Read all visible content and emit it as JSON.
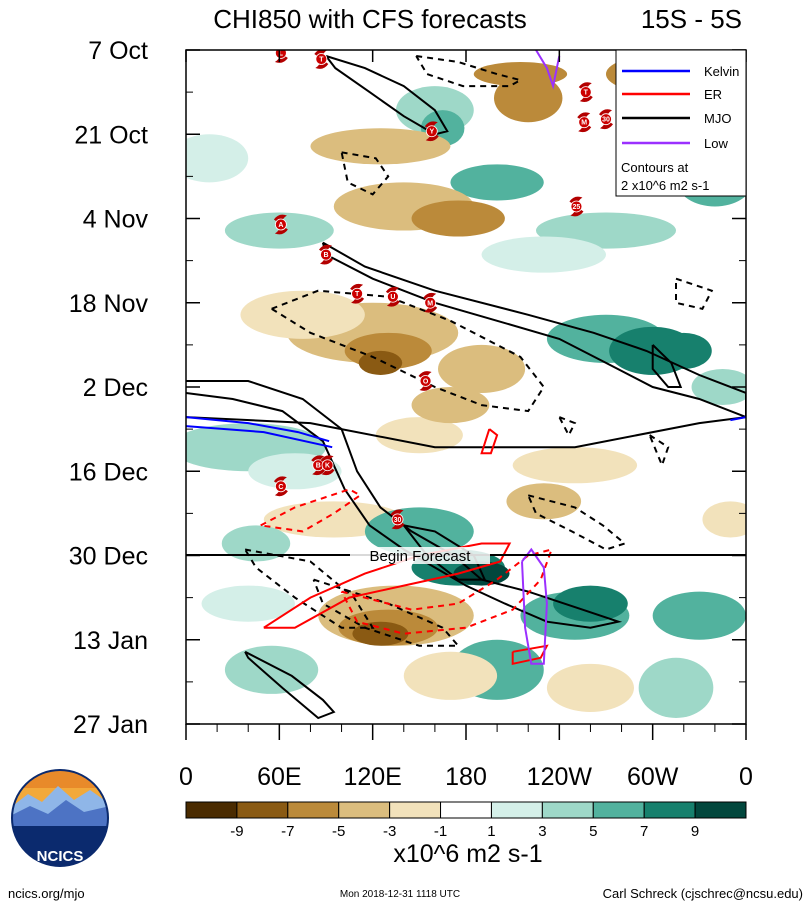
{
  "chart_data": {
    "type": "heatmap",
    "title": "CHI850 with CFS forecasts",
    "subtitle": "15S - 5S",
    "y_tick_labels": [
      "7 Oct",
      "21 Oct",
      "4 Nov",
      "18 Nov",
      "2 Dec",
      "16 Dec",
      "30 Dec",
      "13 Jan",
      "27 Jan"
    ],
    "x_tick_labels": [
      "0",
      "60E",
      "120E",
      "180",
      "120W",
      "60W",
      "0"
    ],
    "x_range_deg_east": [
      0,
      360
    ],
    "y_range_days": [
      0,
      112
    ],
    "begin_forecast_label": "Begin Forecast",
    "begin_forecast_day": 84,
    "legend": {
      "entries": [
        {
          "label": "Kelvin",
          "color": "#0000ff"
        },
        {
          "label": "ER",
          "color": "#ff0000"
        },
        {
          "label": "MJO",
          "color": "#000000"
        },
        {
          "label": "Low",
          "color": "#9b30ff"
        }
      ],
      "note_line1": "Contours at",
      "note_line2": "2 x10^6 m2 s-1",
      "placement": "top-right"
    },
    "colorbar": {
      "levels": [
        "-9",
        "-7",
        "-5",
        "-3",
        "-1",
        "1",
        "3",
        "5",
        "7",
        "9"
      ],
      "colors": [
        "#4a2b00",
        "#8a5a13",
        "#bb8a3a",
        "#dbbd7e",
        "#f2e2bb",
        "#ffffff",
        "#d4efe8",
        "#9ed8c8",
        "#52b29e",
        "#17806d",
        "#02473d"
      ],
      "units": "x10^6 m2 s-1"
    },
    "storms": [
      {
        "label": "L",
        "lon": 61,
        "day": 0.5
      },
      {
        "label": "T",
        "lon": 87,
        "day": 1.5
      },
      {
        "label": "Y",
        "lon": 158,
        "day": 13.5
      },
      {
        "label": "T",
        "lon": 257,
        "day": 7
      },
      {
        "label": "M",
        "lon": 256,
        "day": 12
      },
      {
        "label": "30",
        "lon": 270,
        "day": 11.5
      },
      {
        "label": "25",
        "lon": 251,
        "day": 26
      },
      {
        "label": "A",
        "lon": 61,
        "day": 29
      },
      {
        "label": "B",
        "lon": 90,
        "day": 34
      },
      {
        "label": "T",
        "lon": 110,
        "day": 40.5
      },
      {
        "label": "U",
        "lon": 133,
        "day": 41
      },
      {
        "label": "M",
        "lon": 157,
        "day": 42
      },
      {
        "label": "O",
        "lon": 154,
        "day": 55
      },
      {
        "label": "B",
        "lon": 85,
        "day": 69
      },
      {
        "label": "K",
        "lon": 91,
        "day": 69
      },
      {
        "label": "C",
        "lon": 61,
        "day": 72.5
      },
      {
        "label": "30",
        "lon": 136,
        "day": 78
      }
    ],
    "mjo_contours_solid": [
      [
        [
          90,
          1
        ],
        [
          115,
          3
        ],
        [
          140,
          6
        ],
        [
          160,
          10
        ],
        [
          168,
          13.5
        ],
        [
          160,
          14
        ],
        [
          140,
          11
        ],
        [
          118,
          7
        ],
        [
          96,
          3
        ],
        [
          90,
          1
        ]
      ],
      [
        [
          88,
          32
        ],
        [
          115,
          36
        ],
        [
          160,
          40
        ],
        [
          220,
          44
        ],
        [
          262,
          47
        ],
        [
          296,
          50
        ],
        [
          330,
          54
        ],
        [
          360,
          57
        ],
        [
          360,
          61
        ],
        [
          330,
          58
        ],
        [
          300,
          56
        ],
        [
          270,
          52
        ],
        [
          240,
          48
        ],
        [
          200,
          45
        ],
        [
          160,
          42
        ],
        [
          120,
          38
        ],
        [
          90,
          34
        ],
        [
          88,
          32
        ]
      ],
      [
        [
          0,
          55
        ],
        [
          40,
          55
        ],
        [
          75,
          58
        ],
        [
          100,
          63
        ],
        [
          110,
          70
        ],
        [
          125,
          76
        ],
        [
          145,
          80
        ],
        [
          172,
          84
        ],
        [
          190,
          88
        ],
        [
          220,
          90
        ],
        [
          255,
          93
        ],
        [
          278,
          95
        ],
        [
          260,
          96
        ],
        [
          232,
          95
        ],
        [
          205,
          92
        ],
        [
          180,
          89
        ],
        [
          160,
          86
        ],
        [
          140,
          83
        ],
        [
          118,
          79
        ],
        [
          102,
          73
        ],
        [
          88,
          65
        ],
        [
          62,
          60
        ],
        [
          30,
          58
        ],
        [
          0,
          57
        ]
      ],
      [
        [
          300,
          49
        ],
        [
          312,
          52
        ],
        [
          318,
          56
        ],
        [
          310,
          56
        ],
        [
          300,
          53
        ],
        [
          300,
          49
        ]
      ],
      [
        [
          38,
          100
        ],
        [
          68,
          104
        ],
        [
          88,
          108
        ],
        [
          95,
          110
        ],
        [
          85,
          111
        ],
        [
          62,
          106
        ],
        [
          40,
          101
        ],
        [
          38,
          100
        ]
      ],
      [
        [
          140,
          79
        ],
        [
          160,
          80
        ],
        [
          185,
          84
        ],
        [
          192,
          88
        ],
        [
          175,
          88
        ],
        [
          155,
          84
        ],
        [
          140,
          79
        ]
      ],
      [
        [
          0,
          61
        ],
        [
          80,
          62
        ],
        [
          160,
          66
        ],
        [
          250,
          66
        ],
        [
          330,
          62
        ],
        [
          360,
          61
        ]
      ]
    ],
    "mjo_contours_dashed": [
      [
        [
          148,
          1
        ],
        [
          175,
          2
        ],
        [
          200,
          4
        ],
        [
          215,
          5
        ],
        [
          208,
          6
        ],
        [
          178,
          6
        ],
        [
          155,
          4
        ],
        [
          148,
          1
        ]
      ],
      [
        [
          100,
          17
        ],
        [
          122,
          18
        ],
        [
          130,
          21
        ],
        [
          120,
          24
        ],
        [
          104,
          22
        ],
        [
          100,
          17
        ]
      ],
      [
        [
          55,
          43
        ],
        [
          85,
          40
        ],
        [
          130,
          41
        ],
        [
          170,
          45
        ],
        [
          215,
          51
        ],
        [
          230,
          56
        ],
        [
          220,
          60
        ],
        [
          190,
          59
        ],
        [
          160,
          56
        ],
        [
          120,
          51
        ],
        [
          80,
          47
        ],
        [
          55,
          43
        ]
      ],
      [
        [
          315,
          38
        ],
        [
          338,
          40
        ],
        [
          332,
          43
        ],
        [
          315,
          42
        ],
        [
          315,
          38
        ]
      ],
      [
        [
          240,
          61
        ],
        [
          250,
          62
        ],
        [
          246,
          64
        ],
        [
          240,
          61
        ]
      ],
      [
        [
          298,
          64
        ],
        [
          310,
          66
        ],
        [
          306,
          69
        ],
        [
          298,
          64
        ]
      ],
      [
        [
          220,
          74
        ],
        [
          250,
          76
        ],
        [
          268,
          79
        ],
        [
          282,
          82
        ],
        [
          270,
          83
        ],
        [
          248,
          80
        ],
        [
          225,
          77
        ],
        [
          220,
          74
        ]
      ],
      [
        [
          38,
          83
        ],
        [
          80,
          85
        ],
        [
          108,
          91
        ],
        [
          120,
          96
        ],
        [
          100,
          96
        ],
        [
          70,
          91
        ],
        [
          45,
          86
        ],
        [
          38,
          83
        ]
      ],
      [
        [
          82,
          88
        ],
        [
          130,
          92
        ],
        [
          165,
          96
        ],
        [
          175,
          99
        ],
        [
          150,
          99
        ],
        [
          115,
          96
        ],
        [
          88,
          92
        ],
        [
          82,
          88
        ]
      ]
    ],
    "er_contours_solid": [
      [
        [
          195,
          63
        ],
        [
          200,
          64
        ],
        [
          196,
          67
        ],
        [
          190,
          67
        ],
        [
          195,
          63
        ]
      ],
      [
        [
          50,
          96
        ],
        [
          80,
          91
        ],
        [
          115,
          87
        ],
        [
          150,
          84
        ],
        [
          190,
          82
        ],
        [
          208,
          82
        ],
        [
          202,
          85
        ],
        [
          175,
          87
        ],
        [
          140,
          89
        ],
        [
          105,
          91
        ],
        [
          70,
          96
        ],
        [
          50,
          96
        ]
      ],
      [
        [
          210,
          100
        ],
        [
          232,
          99
        ],
        [
          228,
          101
        ],
        [
          210,
          102
        ],
        [
          210,
          100
        ]
      ]
    ],
    "er_contours_dashed": [
      [
        [
          48,
          79
        ],
        [
          70,
          76
        ],
        [
          105,
          73
        ],
        [
          112,
          74
        ],
        [
          95,
          77
        ],
        [
          75,
          80
        ],
        [
          48,
          79
        ]
      ],
      [
        [
          100,
          90
        ],
        [
          145,
          93
        ],
        [
          175,
          92
        ],
        [
          200,
          88
        ],
        [
          220,
          84
        ],
        [
          235,
          83
        ],
        [
          228,
          88
        ],
        [
          210,
          93
        ],
        [
          180,
          96
        ],
        [
          140,
          97
        ],
        [
          110,
          95
        ],
        [
          100,
          90
        ]
      ]
    ],
    "kelvin_contours": [
      [
        [
          0,
          61
        ],
        [
          40,
          62
        ],
        [
          72,
          63.5
        ],
        [
          92,
          65
        ]
      ],
      [
        [
          0,
          62.5
        ],
        [
          50,
          63.5
        ],
        [
          94,
          66
        ]
      ],
      [
        [
          350,
          61.5
        ],
        [
          360,
          61
        ]
      ]
    ],
    "low_contours": [
      [
        [
          225,
          0
        ],
        [
          232,
          3
        ],
        [
          236,
          6
        ],
        [
          240,
          1
        ]
      ],
      [
        [
          216,
          85
        ],
        [
          222,
          83
        ],
        [
          230,
          86
        ],
        [
          232,
          92
        ],
        [
          230,
          102
        ],
        [
          222,
          102
        ],
        [
          218,
          96
        ],
        [
          216,
          85
        ]
      ]
    ]
  },
  "logo": {
    "text": "NCICS"
  },
  "footer": {
    "left": "ncics.org/mjo",
    "center": "Mon 2018-12-31 1118 UTC",
    "right": "Carl Schreck (cjschrec@ncsu.edu)"
  }
}
